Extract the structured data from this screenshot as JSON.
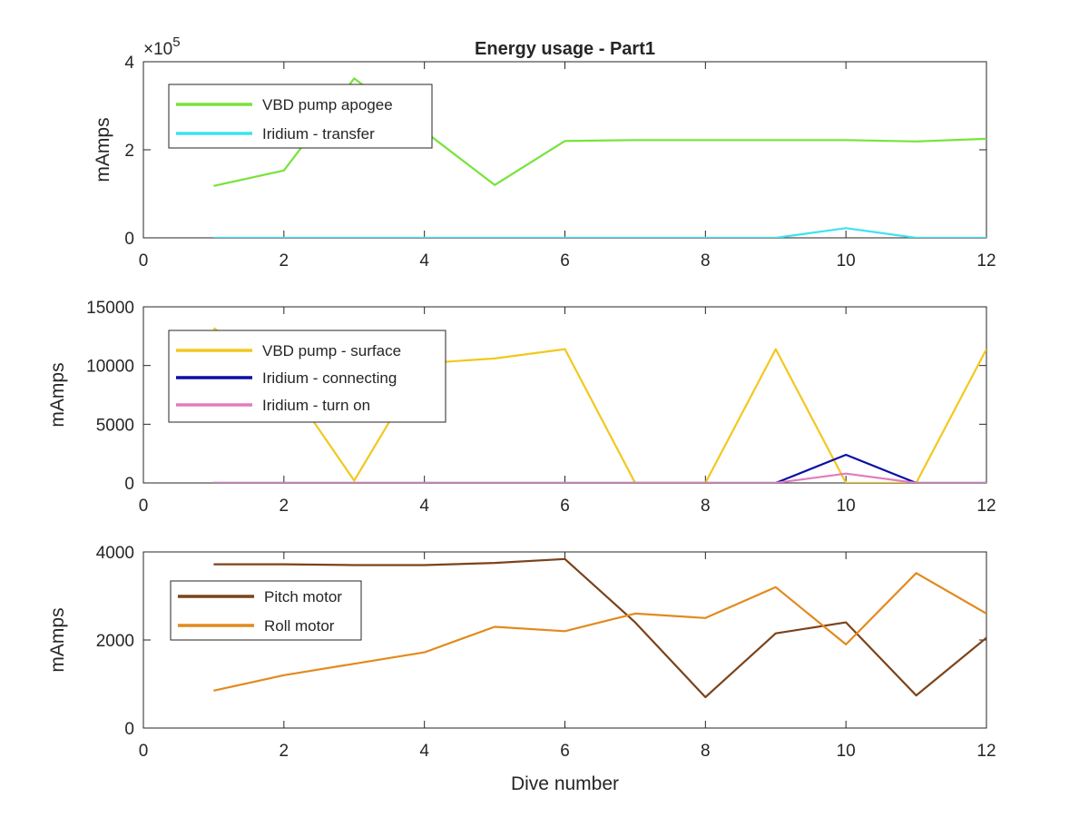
{
  "chart_data": [
    {
      "type": "line",
      "title": "Energy usage - Part1",
      "xlabel": "",
      "ylabel": "mAmps",
      "xlim": [
        0,
        12
      ],
      "ylim": [
        0,
        400000
      ],
      "xticks": [
        "0",
        "2",
        "4",
        "6",
        "8",
        "10",
        "12"
      ],
      "yticks": [
        "0",
        "2",
        "4"
      ],
      "y_exponent_base": "×10",
      "y_exponent_power": "5",
      "legend_position": "top-left",
      "grid": false,
      "x": [
        1,
        2,
        3,
        4,
        5,
        6,
        7,
        8,
        9,
        10,
        11,
        12
      ],
      "series": [
        {
          "name": "VBD pump apogee",
          "color": "#77e33a",
          "values": [
            118000,
            153000,
            362000,
            242000,
            120000,
            220000,
            222000,
            222000,
            222000,
            222000,
            219000,
            225000
          ]
        },
        {
          "name": "Iridium - transfer",
          "color": "#3de3f0",
          "values": [
            0,
            0,
            0,
            0,
            0,
            0,
            0,
            0,
            0,
            22000,
            0,
            0
          ]
        }
      ]
    },
    {
      "type": "line",
      "title": "",
      "xlabel": "",
      "ylabel": "mAmps",
      "xlim": [
        0,
        12
      ],
      "ylim": [
        0,
        15000
      ],
      "xticks": [
        "0",
        "2",
        "4",
        "6",
        "8",
        "10",
        "12"
      ],
      "yticks": [
        "0",
        "5000",
        "10000",
        "15000"
      ],
      "legend_position": "top-left",
      "grid": false,
      "x": [
        1,
        2,
        3,
        4,
        5,
        6,
        7,
        8,
        9,
        10,
        11,
        12
      ],
      "series": [
        {
          "name": "VBD pump - surface",
          "color": "#f2c81e",
          "values": [
            13200,
            8900,
            200,
            10200,
            10600,
            11400,
            0,
            0,
            11400,
            0,
            0,
            11400
          ]
        },
        {
          "name": "Iridium - connecting",
          "color": "#0b0fa3",
          "values": [
            0,
            0,
            0,
            0,
            0,
            0,
            0,
            0,
            0,
            2400,
            0,
            0
          ]
        },
        {
          "name": "Iridium - turn on",
          "color": "#e27bbd",
          "values": [
            0,
            0,
            0,
            0,
            0,
            0,
            0,
            0,
            0,
            800,
            0,
            0
          ]
        }
      ]
    },
    {
      "type": "line",
      "title": "",
      "xlabel": "Dive number",
      "ylabel": "mAmps",
      "xlim": [
        0,
        12
      ],
      "ylim": [
        0,
        4000
      ],
      "xticks": [
        "0",
        "2",
        "4",
        "6",
        "8",
        "10",
        "12"
      ],
      "yticks": [
        "0",
        "2000",
        "4000"
      ],
      "legend_position": "top-left",
      "grid": false,
      "x": [
        1,
        2,
        3,
        4,
        5,
        6,
        7,
        8,
        9,
        10,
        11,
        12
      ],
      "series": [
        {
          "name": "Pitch motor",
          "color": "#7b431a",
          "values": [
            3720,
            3720,
            3700,
            3700,
            3750,
            3840,
            2400,
            700,
            2150,
            2400,
            740,
            2050
          ]
        },
        {
          "name": "Roll motor",
          "color": "#e28a1e",
          "values": [
            850,
            1200,
            1460,
            1720,
            2300,
            2200,
            2600,
            2500,
            3200,
            1900,
            3520,
            2600
          ]
        }
      ]
    }
  ]
}
